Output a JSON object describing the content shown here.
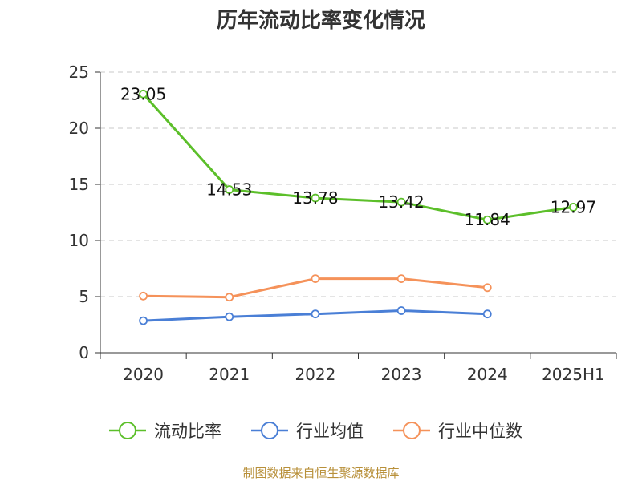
{
  "chart_data": {
    "type": "line",
    "title": "历年流动比率变化情况",
    "categories": [
      "2020",
      "2021",
      "2022",
      "2023",
      "2024",
      "2025H1"
    ],
    "ylim": [
      0,
      25
    ],
    "yticks": [
      "0",
      "5",
      "10",
      "15",
      "20",
      "25"
    ],
    "grid": true,
    "legend_position": "bottom",
    "series": [
      {
        "name": "流动比率",
        "color": "#5cbf2a",
        "values": [
          23.05,
          14.53,
          13.78,
          13.42,
          11.84,
          12.97
        ],
        "labels": [
          "23.05",
          "14.53",
          "13.78",
          "13.42",
          "11.84",
          "12.97"
        ]
      },
      {
        "name": "行业均值",
        "color": "#4a7fd6",
        "values": [
          2.85,
          3.2,
          3.45,
          3.75,
          3.45,
          null
        ]
      },
      {
        "name": "行业中位数",
        "color": "#f5925a",
        "values": [
          5.05,
          4.95,
          6.6,
          6.6,
          5.8,
          null
        ]
      }
    ]
  },
  "source_text": "制图数据来自恒生聚源数据库"
}
